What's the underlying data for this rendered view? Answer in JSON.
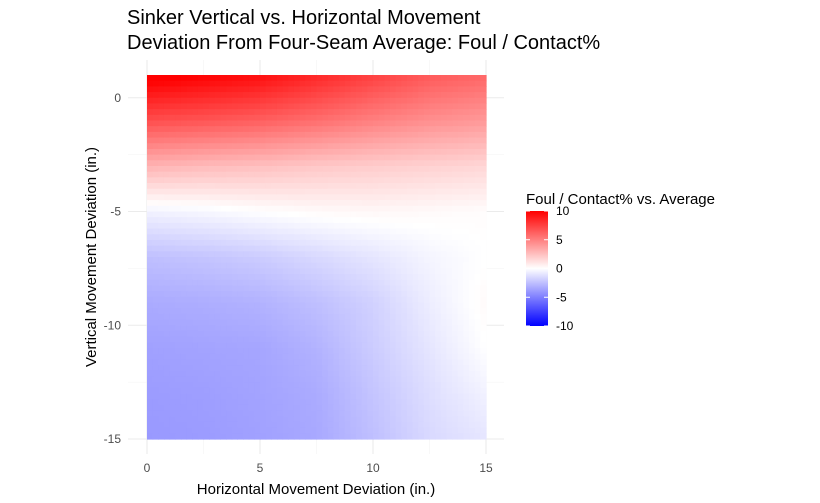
{
  "chart_data": {
    "type": "heatmap",
    "title": "Sinker Vertical vs. Horizontal Movement",
    "subtitle": "Deviation From Four-Seam Average: Foul / Contact%",
    "xlabel": "Horizontal Movement Deviation (in.)",
    "ylabel": "Vertical Movement Deviation (in.)",
    "xlim": [
      0,
      15
    ],
    "ylim": [
      -15,
      1
    ],
    "x_ticks": [
      0,
      5,
      10,
      15
    ],
    "y_ticks": [
      0,
      -5,
      -10,
      -15
    ],
    "grid": true,
    "legend": {
      "title": "Foul / Contact% vs. Average",
      "placement": "right",
      "ticks": [
        10,
        5,
        0,
        -5,
        -10
      ],
      "range": [
        -10,
        10
      ],
      "colors": {
        "high": "#ff0000",
        "mid": "#ffffff",
        "low": "#0000ff"
      }
    },
    "x": [
      0,
      2.5,
      5,
      7.5,
      10,
      12.5,
      15
    ],
    "y": [
      1,
      -1,
      -3,
      -5,
      -7,
      -9,
      -11,
      -13,
      -15
    ],
    "z": [
      [
        10.5,
        10.0,
        9.5,
        8.5,
        7.5,
        6.5,
        6.0
      ],
      [
        7.0,
        6.7,
        6.3,
        5.7,
        5.0,
        4.4,
        4.0
      ],
      [
        3.0,
        2.7,
        2.5,
        2.2,
        2.0,
        1.8,
        1.6
      ],
      [
        -0.5,
        -0.3,
        0.0,
        0.2,
        0.3,
        0.2,
        0.1
      ],
      [
        -2.5,
        -2.3,
        -2.0,
        -1.5,
        -1.0,
        -0.4,
        0.0
      ],
      [
        -3.3,
        -3.2,
        -3.0,
        -2.5,
        -1.8,
        -0.7,
        0.2
      ],
      [
        -3.7,
        -3.6,
        -3.5,
        -3.0,
        -2.0,
        -1.0,
        0.0
      ],
      [
        -3.9,
        -3.8,
        -3.6,
        -3.3,
        -2.3,
        -1.3,
        -0.5
      ],
      [
        -4.0,
        -3.9,
        -3.7,
        -3.4,
        -2.5,
        -1.5,
        -1.0
      ]
    ]
  }
}
